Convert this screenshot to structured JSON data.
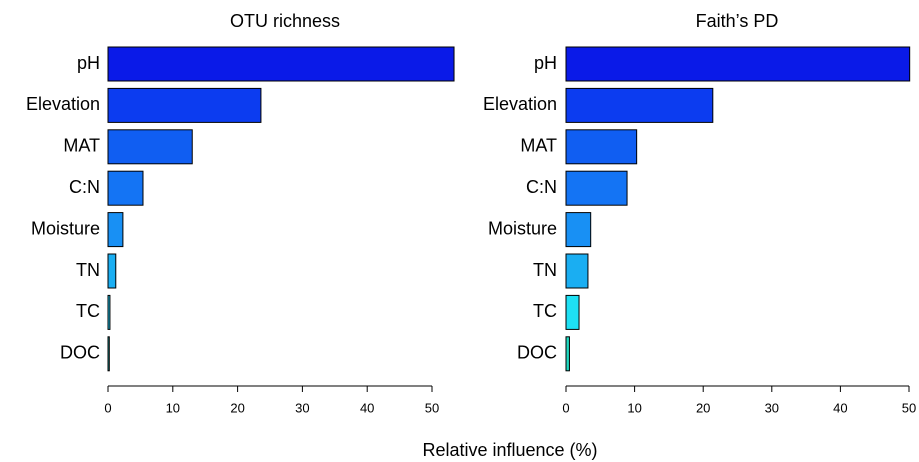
{
  "chart_data": [
    {
      "type": "bar",
      "orientation": "horizontal",
      "title": "OTU richness",
      "categories": [
        "pH",
        "Elevation",
        "MAT",
        "C:N",
        "Moisture",
        "TN",
        "TC",
        "DOC"
      ],
      "values": [
        53.4,
        23.6,
        13.0,
        5.4,
        2.3,
        1.2,
        0.3,
        0.2
      ],
      "colors": [
        "#0a1ae8",
        "#0c3cf0",
        "#105ef2",
        "#1474f4",
        "#1890f4",
        "#1aaef2",
        "#1ec6ee",
        "#1fcfcf"
      ],
      "xlim": [
        0,
        50
      ],
      "xticks": [
        0,
        10,
        20,
        30,
        40,
        50
      ]
    },
    {
      "type": "bar",
      "orientation": "horizontal",
      "title": "Faith’s PD",
      "categories": [
        "pH",
        "Elevation",
        "MAT",
        "C:N",
        "Moisture",
        "TN",
        "TC",
        "DOC"
      ],
      "values": [
        50.1,
        21.4,
        10.3,
        8.9,
        3.6,
        3.2,
        1.9,
        0.5
      ],
      "colors": [
        "#0a1ae8",
        "#0c3cf0",
        "#105ef2",
        "#1474f4",
        "#1890f4",
        "#1aaef2",
        "#1ee0f4",
        "#20d8c0"
      ],
      "xlim": [
        0,
        50
      ],
      "xticks": [
        0,
        10,
        20,
        30,
        40,
        50
      ]
    }
  ],
  "xlabel": "Relative influence (%)"
}
